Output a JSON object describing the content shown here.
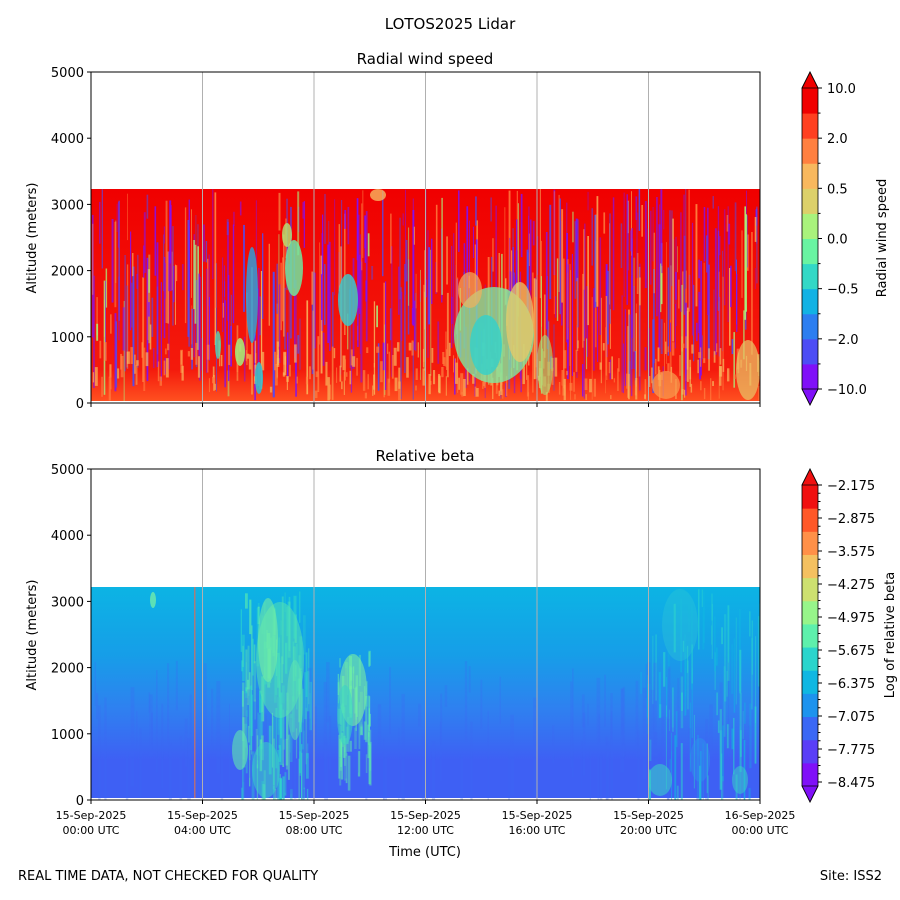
{
  "figure": {
    "suptitle": "LOTOS2025 Lidar",
    "footer_left": "REAL TIME DATA, NOT CHECKED FOR QUALITY",
    "footer_right": "Site: ISS2"
  },
  "chart_data": [
    {
      "type": "heatmap",
      "title": "Radial wind speed",
      "xlabel": "",
      "ylabel": "Altitude (meters)",
      "ylim": [
        0,
        5000
      ],
      "yticks": [
        "0",
        "1000",
        "2000",
        "3000",
        "4000",
        "5000"
      ],
      "data_top_altitude": 3220,
      "grid": "vertical",
      "x_tick_labels": [],
      "colorbar": {
        "label": "Radial wind speed",
        "tick_labels": [
          "−10.0",
          "−2.0",
          "−0.5",
          "0.0",
          "0.5",
          "2.0",
          "10.0"
        ],
        "colors": [
          "#8010f8",
          "#4d4df5",
          "#2c7ef0",
          "#12b2e4",
          "#33d8c6",
          "#69f4a2",
          "#a9f27c",
          "#dcd06a",
          "#f8b85e",
          "#ff8040",
          "#ff4020",
          "#f00000"
        ],
        "extend": "both"
      }
    },
    {
      "type": "heatmap",
      "title": "Relative beta",
      "xlabel": "Time (UTC)",
      "ylabel": "Altitude (meters)",
      "ylim": [
        0,
        5000
      ],
      "yticks": [
        "0",
        "1000",
        "2000",
        "3000",
        "4000",
        "5000"
      ],
      "data_top_altitude": 3220,
      "grid": "vertical",
      "x_tick_labels": [
        [
          "15-Sep-2025",
          "00:00 UTC"
        ],
        [
          "15-Sep-2025",
          "04:00 UTC"
        ],
        [
          "15-Sep-2025",
          "08:00 UTC"
        ],
        [
          "15-Sep-2025",
          "12:00 UTC"
        ],
        [
          "15-Sep-2025",
          "16:00 UTC"
        ],
        [
          "15-Sep-2025",
          "20:00 UTC"
        ],
        [
          "16-Sep-2025",
          "00:00 UTC"
        ]
      ],
      "colorbar": {
        "label": "Log of relative beta",
        "tick_labels": [
          "−8.475",
          "−7.775",
          "−7.075",
          "−6.375",
          "−5.675",
          "−4.975",
          "−4.275",
          "−3.575",
          "−2.875",
          "−2.175"
        ],
        "colors": [
          "#8010f8",
          "#5a3ef7",
          "#3a68f5",
          "#1d93ee",
          "#10b7e2",
          "#2bd5cc",
          "#5ef0ac",
          "#97f58a",
          "#cde070",
          "#f4c060",
          "#ff9048",
          "#ff5828",
          "#f01010"
        ],
        "extend": "both"
      }
    }
  ]
}
